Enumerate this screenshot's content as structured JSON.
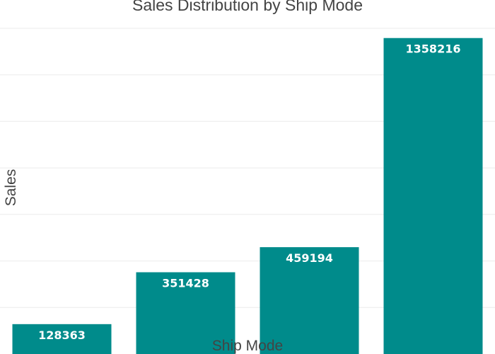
{
  "chart_data": {
    "type": "bar",
    "title": "Sales Distribution by Ship Mode",
    "xlabel": "Ship Mode",
    "ylabel": "Sales",
    "categories": [
      "",
      "",
      "",
      ""
    ],
    "values": [
      128363,
      351428,
      459194,
      1358216
    ],
    "ylim": [
      0,
      1400000
    ],
    "grid": true,
    "bar_color": "#008b8b",
    "label_color": "#ffffff",
    "gridline_color": "#ebebeb",
    "text_color": "#444444"
  }
}
